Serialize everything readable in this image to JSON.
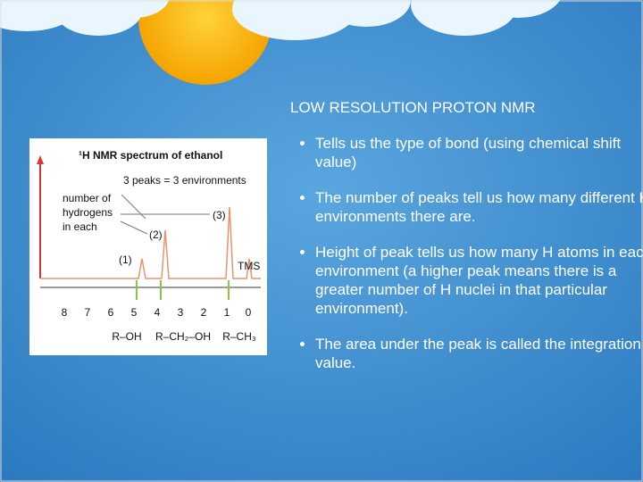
{
  "title": "LOW RESOLUTION PROTON NMR",
  "bullets": [
    "Tells us the type of bond (using chemical shift value)",
    "The number of peaks tell us how many different H environments there are.",
    "Height of peak tells us how many H atoms in each environment (a higher peak means there is a greater number of H nuclei in that particular environment).",
    "The area under the peak is called the integration value."
  ],
  "figure": {
    "title": "¹H NMR spectrum of ethanol",
    "peaks_note": "3 peaks = 3 environments",
    "y_label": [
      "number of",
      "hydrogens",
      "in each"
    ],
    "peak_labels": [
      "(1)",
      "(2)",
      "(3)"
    ],
    "tms": "TMS",
    "x_ticks": [
      "8",
      "7",
      "6",
      "5",
      "4",
      "3",
      "2",
      "1",
      "0"
    ],
    "groups": [
      "R–OH",
      "R–CH₂–OH",
      "R–CH₃"
    ]
  }
}
